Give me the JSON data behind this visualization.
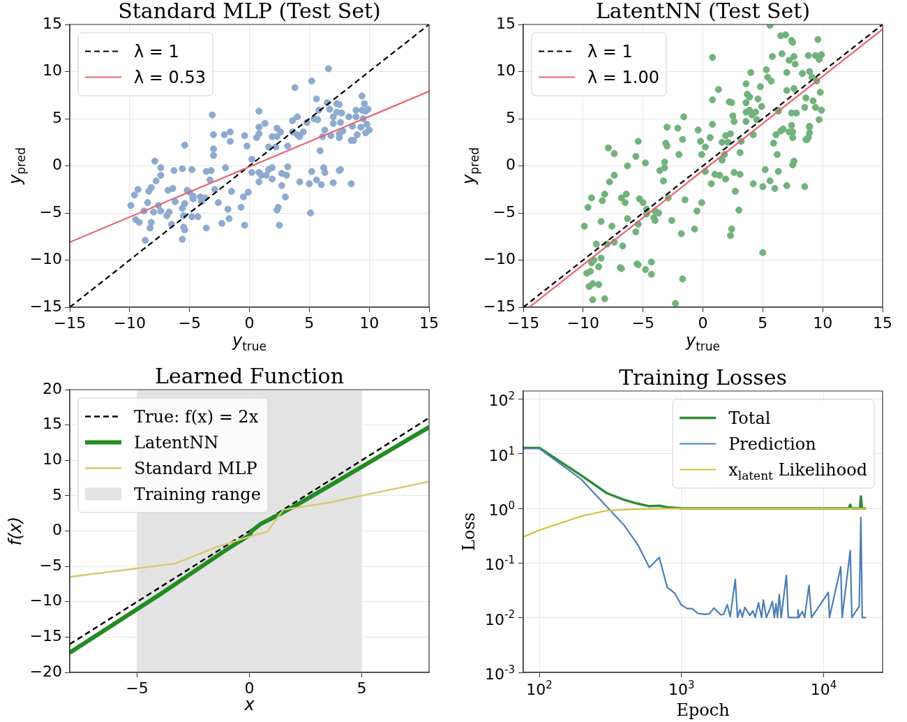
{
  "chart_data": [
    {
      "type": "scatter",
      "title": "Standard MLP (Test Set)",
      "xlabel": "y$_{true}$",
      "ylabel": "y$_{pred}$",
      "xlim": [
        -15,
        15
      ],
      "ylim": [
        -15,
        15
      ],
      "xticks": [
        {
          "value": -15,
          "label": "−15"
        },
        {
          "value": -10,
          "label": "−10"
        },
        {
          "value": -5,
          "label": "−5"
        },
        0,
        5,
        10,
        15
      ],
      "yticks": [
        {
          "value": -15,
          "label": "−15"
        },
        {
          "value": -10,
          "label": "−10"
        },
        {
          "value": -5,
          "label": "−5"
        },
        0,
        5,
        10,
        15
      ],
      "grid": true,
      "legend": "top left",
      "series": [
        {
          "type": "scatter",
          "color": "#8eaad0",
          "marker": "circle",
          "x": [
            -9.9,
            -9.6,
            -9.3,
            -9.5,
            -9.2,
            -8.8,
            -8.5,
            -8.2,
            -8.4,
            -8.2,
            -8.3,
            -8.7,
            -7.9,
            -7.4,
            -7.4,
            -7.8,
            -7.6,
            -8.0,
            -7.4,
            -6.9,
            -6.7,
            -6.5,
            -6.8,
            -6.4,
            -6.3,
            -6.2,
            -5.6,
            -5.4,
            -5.6,
            -5.4,
            -5.2,
            -5.0,
            -5.5,
            -5.5,
            -5.4,
            -5.6,
            -4.8,
            -4.7,
            -4.7,
            -4.8,
            -4.3,
            -4.1,
            -4.0,
            -3.7,
            -3.6,
            -3.6,
            -3.2,
            -3.3,
            -2.9,
            -3.1,
            -3.0,
            -3.0,
            -3.0,
            -2.6,
            -2.3,
            -2.1,
            -1.6,
            -1.6,
            -2.0,
            -1.5,
            -1.8,
            -1.7,
            -0.4,
            -0.2,
            -0.5,
            -0.7,
            -0.4,
            -0.1,
            0.2,
            0.2,
            0.8,
            0.8,
            0.8,
            0.6,
            1.3,
            1.6,
            0.8,
            1.0,
            1.4,
            0.8,
            1.9,
            1.6,
            1.9,
            1.9,
            2.3,
            2.6,
            2.3,
            2.2,
            2.7,
            3.1,
            3.2,
            2.7,
            3.0,
            2.4,
            2.3,
            2.5,
            3.2,
            3.6,
            3.8,
            4.0,
            3.6,
            4.0,
            4.2,
            4.5,
            4.8,
            4.2,
            5.0,
            5.1,
            5.2,
            5.2,
            5.4,
            5.6,
            5.7,
            5.8,
            5.9,
            5.6,
            6.0,
            6.2,
            6.3,
            6.6,
            6.5,
            6.7,
            6.3,
            6.1,
            6.8,
            7.0,
            7.0,
            7.3,
            7.5,
            7.3,
            7.7,
            7.6,
            7.5,
            7.5,
            7.8,
            7.0,
            7.5,
            7.6,
            8.5,
            8.3,
            8.9,
            8.9,
            8.6,
            8.5,
            8.7,
            9.0,
            9.3,
            9.4,
            9.6,
            9.4,
            9.7,
            9.9,
            9.5,
            9.8,
            10.0,
            9.7
          ],
          "values": [
            -4.2,
            -3.1,
            -2.5,
            -5.7,
            -6.0,
            -4.8,
            -3.9,
            -2.3,
            -2.7,
            -6.0,
            -6.6,
            -7.9,
            0.5,
            -0.2,
            -1.0,
            -1.6,
            -4.2,
            -4.9,
            -4.8,
            -5.3,
            -4.9,
            -6.2,
            -2.6,
            -2.4,
            -0.5,
            -3.8,
            -0.3,
            2.2,
            -4.5,
            -4.0,
            -2.6,
            -2.8,
            -5.3,
            -6.5,
            -6.8,
            -7.8,
            -0.4,
            -3.5,
            -3.2,
            -5.4,
            -5.4,
            -3.3,
            -3.8,
            -3.4,
            -6.6,
            -0.6,
            -0.5,
            -1.5,
            -2.5,
            5.4,
            3.3,
            1.8,
            1.1,
            -3.9,
            -6.1,
            3.3,
            3.6,
            2.6,
            -0.2,
            -2.7,
            -4.6,
            -5.6,
            3.2,
            2.1,
            -3.3,
            -4.4,
            -6.3,
            -2.8,
            0.7,
            -0.7,
            5.8,
            4.1,
            3.4,
            3.0,
            4.5,
            2.0,
            -0.7,
            -1.0,
            -1.0,
            -1.7,
            -0.2,
            -0.4,
            -1.4,
            3.1,
            4.0,
            3.6,
            3.1,
            2.0,
            -0.8,
            -1.0,
            -0.1,
            -2.1,
            -3.3,
            -4.4,
            -4.7,
            -6.3,
            2.1,
            4.8,
            8.3,
            5.2,
            3.6,
            3.3,
            3.1,
            3.6,
            4.6,
            -1.7,
            -1.9,
            -5.0,
            9.0,
            -0.6,
            5.0,
            7.1,
            4.9,
            5.9,
            1.6,
            -1.5,
            -2.0,
            -0.2,
            -0.7,
            10.3,
            6.7,
            6.0,
            3.8,
            3.1,
            3.2,
            5.2,
            4.5,
            6.6,
            6.5,
            5.7,
            5.6,
            4.6,
            3.4,
            3.0,
            3.7,
            -1.8,
            -0.5,
            -0.4,
            -1.9,
            5.2,
            5.9,
            5.2,
            4.2,
            2.7,
            2.7,
            3.3,
            4.1,
            7.4,
            6.6,
            5.9,
            5.8,
            6.0,
            5.0,
            4.4,
            3.8,
            3.5
          ]
        },
        {
          "type": "line",
          "name": "λ = 1",
          "color": "#000000",
          "line_style": "dashed",
          "x": [
            -15,
            15
          ],
          "values": [
            -15,
            15
          ]
        },
        {
          "type": "line",
          "name": "λ = 0.53",
          "color": "#e8616f",
          "x": [
            -15,
            15
          ],
          "values": [
            -8.1,
            7.9
          ]
        }
      ]
    },
    {
      "type": "scatter",
      "title": "LatentNN (Test Set)",
      "xlabel": "y$_{true}$",
      "ylabel": "y$_{pred}$",
      "xlim": [
        -15,
        15
      ],
      "ylim": [
        -15,
        15
      ],
      "xticks": [
        {
          "value": -15,
          "label": "−15"
        },
        {
          "value": -10,
          "label": "−10"
        },
        {
          "value": -5,
          "label": "−5"
        },
        0,
        5,
        10,
        15
      ],
      "yticks": [
        {
          "value": -15,
          "label": "−15"
        },
        {
          "value": -10,
          "label": "−10"
        },
        {
          "value": -5,
          "label": "−5"
        },
        0,
        5,
        10,
        15
      ],
      "grid": true,
      "legend": "top left",
      "series": [
        {
          "type": "scatter",
          "color": "#72b27c",
          "marker": "circle",
          "x": [
            -9.9,
            -9.6,
            -9.3,
            -9.7,
            -9.4,
            -9.3,
            -9.1,
            -9.2,
            -9.5,
            -9.2,
            -8.7,
            -8.7,
            -8.5,
            -8.9,
            -8.5,
            -8.4,
            -8.2,
            -8.2,
            -8.0,
            -7.6,
            -7.4,
            -7.9,
            -7.4,
            -7.4,
            -7.8,
            -6.8,
            -6.5,
            -6.4,
            -6.3,
            -6.3,
            -6.7,
            -6.9,
            -6.8,
            -5.6,
            -5.4,
            -5.3,
            -5.0,
            -5.6,
            -5.4,
            -5.5,
            -5.4,
            -4.8,
            -4.7,
            -4.7,
            -4.8,
            -4.3,
            -4.3,
            -4.1,
            -4.0,
            -4.0,
            -3.7,
            -3.6,
            -3.3,
            -3.2,
            -3.2,
            -3.1,
            -3.0,
            -3.0,
            -2.9,
            -2.6,
            -2.3,
            -2.1,
            -2.0,
            -1.7,
            -1.6,
            -1.8,
            -1.7,
            -1.5,
            -0.7,
            -0.5,
            -0.4,
            -0.2,
            -0.1,
            -0.1,
            0.2,
            0.2,
            0.6,
            0.7,
            0.8,
            0.8,
            0.8,
            1.0,
            1.3,
            1.4,
            1.6,
            1.6,
            1.8,
            1.9,
            1.9,
            2.1,
            2.2,
            2.4,
            2.3,
            2.5,
            2.6,
            2.6,
            2.7,
            3.0,
            2.4,
            2.3,
            3.1,
            3.1,
            3.2,
            3.6,
            3.7,
            3.9,
            3.6,
            3.6,
            3.9,
            4.1,
            3.6,
            4.0,
            4.2,
            4.4,
            4.5,
            4.6,
            4.8,
            4.9,
            4.2,
            5.0,
            5.2,
            5.0,
            5.3,
            5.4,
            5.7,
            5.8,
            5.6,
            5.6,
            6.0,
            5.9,
            6.1,
            6.2,
            6.3,
            6.3,
            6.5,
            6.9,
            6.6,
            6.5,
            6.7,
            7.0,
            7.0,
            7.0,
            7.2,
            7.4,
            7.5,
            7.6,
            7.7,
            7.2,
            7.4,
            7.5,
            7.5,
            7.6,
            7.4,
            7.8,
            7.5,
            7.6,
            8.5,
            8.3,
            8.8,
            9.4,
            9.9,
            9.7,
            9.6,
            8.9,
            9.1,
            9.5,
            9.8,
            8.6,
            9.2,
            8.5,
            9.4,
            9.9,
            9.7,
            8.9,
            8.9,
            8.9,
            8.8,
            8.6,
            8.7,
            6.3
          ],
          "values": [
            -6.4,
            -4.4,
            -3.4,
            -11.4,
            -11.2,
            -10.3,
            -10.0,
            -12.5,
            -12.8,
            -14.2,
            -12.6,
            -10.7,
            -9.8,
            -8.3,
            -5.9,
            -3.7,
            -3.0,
            -14.1,
            -8.3,
            -6.4,
            -8.1,
            1.9,
            1.3,
            -1.0,
            -1.7,
            -3.4,
            -3.9,
            -3.0,
            0.0,
            -5.6,
            -8.5,
            -10.8,
            -10.9,
            1.0,
            2.6,
            -3.5,
            -3.9,
            -7.0,
            -6.2,
            -10.4,
            -10.5,
            0.3,
            -4.6,
            -5.1,
            -11.0,
            -10.2,
            -11.5,
            -5.5,
            -5.8,
            -4.8,
            -5.0,
            -0.5,
            -1.6,
            -0.2,
            0.4,
            2.4,
            2.1,
            4.1,
            -3.4,
            -5.8,
            -14.6,
            4.0,
            1.2,
            2.8,
            5.2,
            -7.2,
            -12.0,
            -3.6,
            -6.7,
            -4.8,
            3.8,
            2.6,
            1.2,
            -3.9,
            2.0,
            -0.6,
            3.0,
            -1.9,
            4.4,
            7.0,
            11.5,
            -0.9,
            8.1,
            -1.0,
            2.5,
            0.6,
            1.2,
            -1.4,
            3.2,
            2.5,
            6.8,
            6.7,
            3.4,
            5.3,
            4.7,
            -0.7,
            -2.7,
            -4.7,
            -6.7,
            -7.4,
            -0.9,
            1.4,
            2.6,
            8.7,
            7.6,
            7.3,
            6.7,
            5.7,
            5.9,
            5.4,
            4.7,
            9.9,
            3.3,
            5.7,
            4.9,
            7.1,
            8.4,
            6.3,
            -1.9,
            -2.2,
            -0.4,
            -9.2,
            10.2,
            9.4,
            9.0,
            11.6,
            14.9,
            -1.6,
            -2.4,
            2.4,
            3.3,
            1.2,
            5.9,
            -0.6,
            13.8,
            13.9,
            11.9,
            3.7,
            3.9,
            -2.1,
            9.9,
            8.0,
            11.2,
            13.3,
            13.1,
            11.6,
            10.8,
            3.6,
            4.3,
            3.6,
            3.0,
            8.2,
            5.6,
            5.6,
            0.1,
            0.5,
            -2.2,
            9.8,
            11.7,
            11.7,
            11.8,
            11.3,
            13.4,
            10.0,
            9.4,
            9.0,
            7.8,
            7.2,
            6.9,
            6.2,
            6.2,
            5.9,
            4.9,
            4.2,
            4.1,
            3.5,
            3.0,
            2.8,
            2.8,
            5.8
          ]
        },
        {
          "type": "line",
          "name": "λ = 1",
          "color": "#000000",
          "line_style": "dashed",
          "x": [
            -15,
            15
          ],
          "values": [
            -15,
            15
          ]
        },
        {
          "type": "line",
          "name": "λ = 1.00",
          "color": "#e8616f",
          "x": [
            -14.5,
            15
          ],
          "values": [
            -15,
            14.5
          ]
        }
      ]
    },
    {
      "type": "line",
      "title": "Learned Function",
      "xlabel": "x",
      "ylabel": "f(x)",
      "xlim": [
        -8,
        8
      ],
      "ylim": [
        -20,
        20
      ],
      "xticks": [
        {
          "value": -5,
          "label": "−5"
        },
        0,
        5
      ],
      "yticks": [
        {
          "value": -20,
          "label": "−20"
        },
        {
          "value": -15,
          "label": "−15"
        },
        {
          "value": -10,
          "label": "−10"
        },
        {
          "value": -5,
          "label": "−5"
        },
        0,
        5,
        10,
        15,
        20
      ],
      "grid": true,
      "legend": "top left",
      "bands": [
        {
          "axis": "x",
          "from": -5,
          "to": 5,
          "label": "Training range",
          "color": "#e3e3e3"
        }
      ],
      "series": [
        {
          "name": "True: f(x) = 2x",
          "color": "#000000",
          "line_style": "dashed",
          "x": [
            -8,
            8
          ],
          "values": [
            -16,
            16
          ]
        },
        {
          "name": "LatentNN",
          "color": "#228b22",
          "x": [
            -8,
            -4,
            -1,
            0,
            0.1,
            0.5,
            1,
            2,
            4,
            8
          ],
          "values": [
            -17.2,
            -9.0,
            -2.6,
            -0.6,
            0,
            1.0,
            1.8,
            3.5,
            7.2,
            14.7
          ]
        },
        {
          "name": "Standard MLP",
          "color": "#d8c96e",
          "x": [
            -8,
            -3.3,
            -1.5,
            0,
            0.8,
            1.5,
            3.5,
            5,
            8
          ],
          "values": [
            -6.5,
            -4.6,
            -2.3,
            -0.8,
            -0.1,
            3.0,
            4.0,
            5.0,
            7.0
          ]
        }
      ]
    },
    {
      "type": "line",
      "title": "Training Losses",
      "xlabel": "Epoch",
      "ylabel": "Loss",
      "log": "xy",
      "xlim": [
        77,
        26000
      ],
      "ylim": [
        0.001,
        140
      ],
      "xticks": [
        {
          "value": 100,
          "label": "10$^{2}$"
        },
        {
          "value": 1000,
          "label": "10$^{3}$"
        },
        {
          "value": 10000,
          "label": "10$^{4}$"
        }
      ],
      "yticks": [
        {
          "value": 0.001,
          "label": "10$^{-3}$"
        },
        {
          "value": 0.01,
          "label": "10$^{-2}$"
        },
        {
          "value": 0.1,
          "label": "10$^{-1}$"
        },
        {
          "value": 1,
          "label": "10$^{0}$"
        },
        {
          "value": 10,
          "label": "10$^{1}$"
        },
        {
          "value": 100,
          "label": "10$^{2}$"
        }
      ],
      "grid": true,
      "legend": "top right",
      "series": [
        {
          "name": "Total",
          "color": "#2e8b35",
          "x": [
            77,
            100,
            197,
            298,
            389,
            486,
            588,
            697,
            794,
            1000,
            15000,
            15400,
            15700,
            18000,
            18300,
            18600,
            19900
          ],
          "values": [
            12.8,
            12.8,
            4.0,
            1.9,
            1.45,
            1.23,
            1.1,
            1.12,
            1.05,
            1.0,
            1.0,
            1.17,
            1.0,
            1.0,
            1.66,
            1.0,
            1.0
          ]
        },
        {
          "name": "Prediction",
          "color": "#4a7eb5",
          "x": [
            77,
            100,
            197,
            395,
            496,
            594,
            697,
            794,
            897,
            1000,
            1100,
            1190,
            1300,
            1450,
            1570,
            1690,
            1890,
            1980,
            2100,
            2200,
            2390,
            2480,
            2580,
            2680,
            2790,
            3030,
            3180,
            3300,
            3480,
            3660,
            3770,
            3950,
            4170,
            4360,
            4500,
            4620,
            4740,
            4870,
            5030,
            5470,
            5640,
            6560,
            6600,
            6700,
            7080,
            7350,
            7890,
            8220,
            10800,
            11000,
            13200,
            13500,
            15400,
            15800,
            17800,
            18300,
            18700,
            19900
          ],
          "values": [
            12.4,
            12.4,
            3.4,
            0.49,
            0.21,
            0.083,
            0.127,
            0.036,
            0.028,
            0.017,
            0.0147,
            0.0147,
            0.012,
            0.0115,
            0.0118,
            0.015,
            0.0113,
            0.0115,
            0.0174,
            0.0104,
            0.05,
            0.0101,
            0.0141,
            0.0104,
            0.0155,
            0.011,
            0.0134,
            0.0101,
            0.0188,
            0.0101,
            0.021,
            0.0101,
            0.0141,
            0.0198,
            0.0101,
            0.018,
            0.0101,
            0.0266,
            0.0101,
            0.06,
            0.0101,
            0.0101,
            0.014,
            0.0101,
            0.013,
            0.0101,
            0.039,
            0.0101,
            0.029,
            0.0101,
            0.085,
            0.0101,
            0.17,
            0.0101,
            0.0162,
            0.68,
            0.0101,
            0.0101
          ]
        },
        {
          "name": "x$_{latent}$ Likelihood",
          "color": "#d4bf3c",
          "x": [
            77,
            100,
            197,
            298,
            469,
            1000,
            19900
          ],
          "values": [
            0.3,
            0.4,
            0.72,
            0.91,
            0.97,
            1.0,
            1.0
          ]
        }
      ]
    }
  ]
}
